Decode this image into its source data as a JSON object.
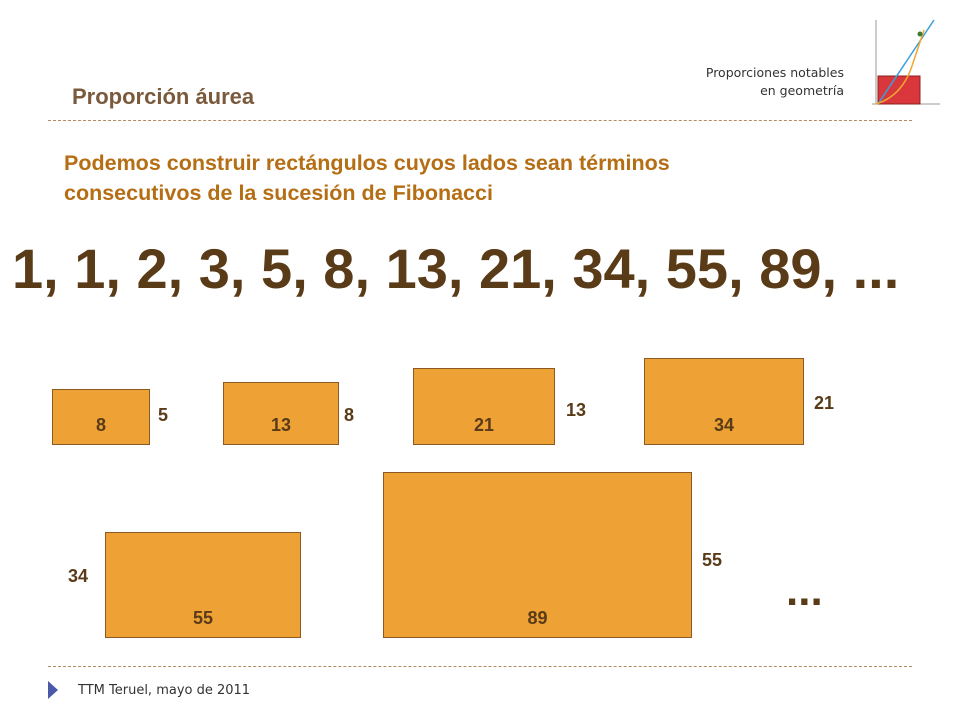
{
  "slide": {
    "title": "Proporción áurea",
    "header_note_line1": "Proporciones notables",
    "header_note_line2": "en geometría",
    "subtitle_line1": "Podemos construir rectángulos cuyos lados sean términos",
    "subtitle_line2": "consecutivos de la sucesión de Fibonacci",
    "sequence": "1, 1, 2, 3, 5, 8, 13, 21, 34, 55, 89, ...",
    "ellipsis": "...",
    "footer": "TTM Teruel, mayo de 2011"
  },
  "rectangles": [
    {
      "width_label": "8",
      "height_label": "5"
    },
    {
      "width_label": "13",
      "height_label": "8"
    },
    {
      "width_label": "21",
      "height_label": "13"
    },
    {
      "width_label": "34",
      "height_label": "21"
    },
    {
      "width_label": "55",
      "height_label": "34"
    },
    {
      "width_label": "89",
      "height_label": "55"
    }
  ],
  "colors": {
    "rectangle_fill": "#eea236",
    "title": "#7a5a3c",
    "subtitle": "#b56e14",
    "sequence": "#5a3b18",
    "logo_rect": "#d9373c"
  },
  "icons": {
    "logo": "golden-ratio-graph-icon",
    "footer_bullet": "triangle-bullet-icon"
  }
}
